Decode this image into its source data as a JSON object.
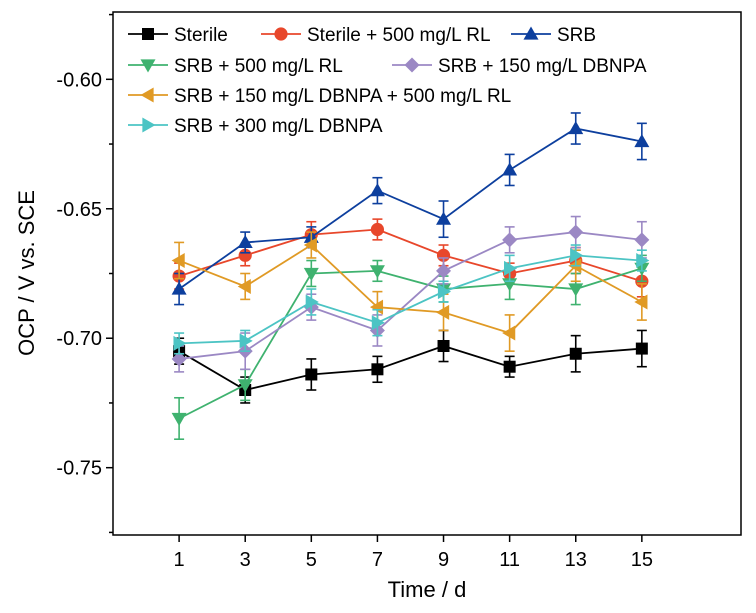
{
  "chart_data": {
    "type": "line",
    "xlabel": "Time / d",
    "ylabel": "OCP / V vs. SCE",
    "x": [
      1,
      3,
      5,
      7,
      9,
      11,
      13,
      15
    ],
    "x_tick_labels": [
      "1",
      "3",
      "5",
      "7",
      "9",
      "11",
      "13",
      "15"
    ],
    "y_tick_labels": [
      "-0.60",
      "-0.65",
      "-0.70",
      "-0.75"
    ],
    "xlim": [
      -1,
      18
    ],
    "ylim": [
      -0.776,
      -0.574
    ],
    "grid": false,
    "legend_position": "top",
    "series": [
      {
        "name": "Sterile",
        "color": "#000000",
        "marker": "square",
        "values": [
          -0.705,
          -0.72,
          -0.714,
          -0.712,
          -0.703,
          -0.711,
          -0.706,
          -0.704
        ],
        "errors": [
          0.005,
          0.005,
          0.006,
          0.005,
          0.006,
          0.004,
          0.007,
          0.007
        ]
      },
      {
        "name": "Sterile + 500 mg/L RL",
        "color": "#e8472b",
        "marker": "circle",
        "values": [
          -0.676,
          -0.668,
          -0.66,
          -0.658,
          -0.668,
          -0.675,
          -0.67,
          -0.678
        ],
        "errors": [
          0.005,
          0.004,
          0.005,
          0.004,
          0.004,
          0.004,
          0.005,
          0.006
        ]
      },
      {
        "name": "SRB",
        "color": "#0d3f9e",
        "marker": "triangle-up",
        "values": [
          -0.681,
          -0.663,
          -0.661,
          -0.643,
          -0.654,
          -0.635,
          -0.619,
          -0.624
        ],
        "errors": [
          0.006,
          0.004,
          0.004,
          0.005,
          0.007,
          0.006,
          0.006,
          0.007
        ]
      },
      {
        "name": "SRB + 500 mg/L RL",
        "color": "#3fb26f",
        "marker": "triangle-down",
        "values": [
          -0.731,
          -0.718,
          -0.675,
          -0.674,
          -0.681,
          -0.679,
          -0.681,
          -0.673
        ],
        "errors": [
          0.008,
          0.006,
          0.005,
          0.004,
          0.005,
          0.006,
          0.006,
          0.005
        ]
      },
      {
        "name": "SRB + 150 mg/L DBNPA",
        "color": "#9b88c4",
        "marker": "diamond",
        "values": [
          -0.708,
          -0.705,
          -0.688,
          -0.697,
          -0.674,
          -0.662,
          -0.659,
          -0.662
        ],
        "errors": [
          0.005,
          0.007,
          0.005,
          0.006,
          0.005,
          0.005,
          0.006,
          0.007
        ]
      },
      {
        "name": "SRB + 150 mg/L DBNPA + 500 mg/L RL",
        "color": "#e09a25",
        "marker": "triangle-left",
        "values": [
          -0.67,
          -0.68,
          -0.664,
          -0.688,
          -0.69,
          -0.698,
          -0.672,
          -0.686
        ],
        "errors": [
          0.007,
          0.005,
          0.005,
          0.006,
          0.007,
          0.007,
          0.006,
          0.007
        ]
      },
      {
        "name": "SRB + 300 mg/L DBNPA",
        "color": "#4cc4c4",
        "marker": "triangle-right",
        "values": [
          -0.702,
          -0.701,
          -0.686,
          -0.694,
          -0.682,
          -0.673,
          -0.668,
          -0.67
        ],
        "errors": [
          0.004,
          0.004,
          0.005,
          0.005,
          0.004,
          0.005,
          0.004,
          0.004
        ]
      }
    ]
  }
}
